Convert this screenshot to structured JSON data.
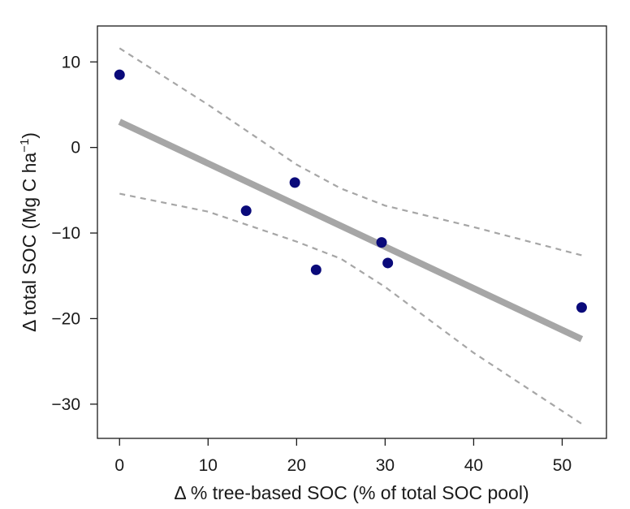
{
  "chart_data": {
    "type": "scatter",
    "xlabel": "Δ % tree-based SOC (% of total SOC pool)",
    "ylabel_main": "Δ total SOC (Mg C ha",
    "ylabel_sup": "−1",
    "ylabel_end": ")",
    "xlim": [
      -2.5,
      55
    ],
    "ylim": [
      -34,
      14.2
    ],
    "x_ticks": [
      0,
      10,
      20,
      30,
      40,
      50
    ],
    "x_tick_labels": [
      "0",
      "10",
      "20",
      "30",
      "40",
      "50"
    ],
    "y_ticks": [
      10,
      0,
      -10,
      -20,
      -30
    ],
    "y_tick_labels": [
      "10",
      "0",
      "−10",
      "−20",
      "−30"
    ],
    "grid": false,
    "colors": {
      "points": "#0a0a7a",
      "fit_line": "#a6a6a6",
      "ci_band": "#a6a6a6",
      "axis": "#1a1a1a"
    },
    "points": [
      {
        "x": 0,
        "y": 8.5
      },
      {
        "x": 14.3,
        "y": -7.4
      },
      {
        "x": 19.8,
        "y": -4.1
      },
      {
        "x": 22.2,
        "y": -14.3
      },
      {
        "x": 29.6,
        "y": -11.1
      },
      {
        "x": 30.3,
        "y": -13.5
      },
      {
        "x": 52.2,
        "y": -18.7
      }
    ],
    "fit_line": [
      {
        "x": 0,
        "y": 3.0
      },
      {
        "x": 52.2,
        "y": -22.4
      }
    ],
    "ci_upper": [
      {
        "x": 0,
        "y": 11.6
      },
      {
        "x": 10,
        "y": 5.0
      },
      {
        "x": 20,
        "y": -2.0
      },
      {
        "x": 25,
        "y": -4.8
      },
      {
        "x": 30,
        "y": -6.8
      },
      {
        "x": 40,
        "y": -9.3
      },
      {
        "x": 52.2,
        "y": -12.6
      }
    ],
    "ci_lower": [
      {
        "x": 0,
        "y": -5.4
      },
      {
        "x": 10,
        "y": -7.5
      },
      {
        "x": 20,
        "y": -11.0
      },
      {
        "x": 25,
        "y": -13.0
      },
      {
        "x": 30,
        "y": -16.3
      },
      {
        "x": 40,
        "y": -24.0
      },
      {
        "x": 52.2,
        "y": -32.3
      }
    ]
  }
}
